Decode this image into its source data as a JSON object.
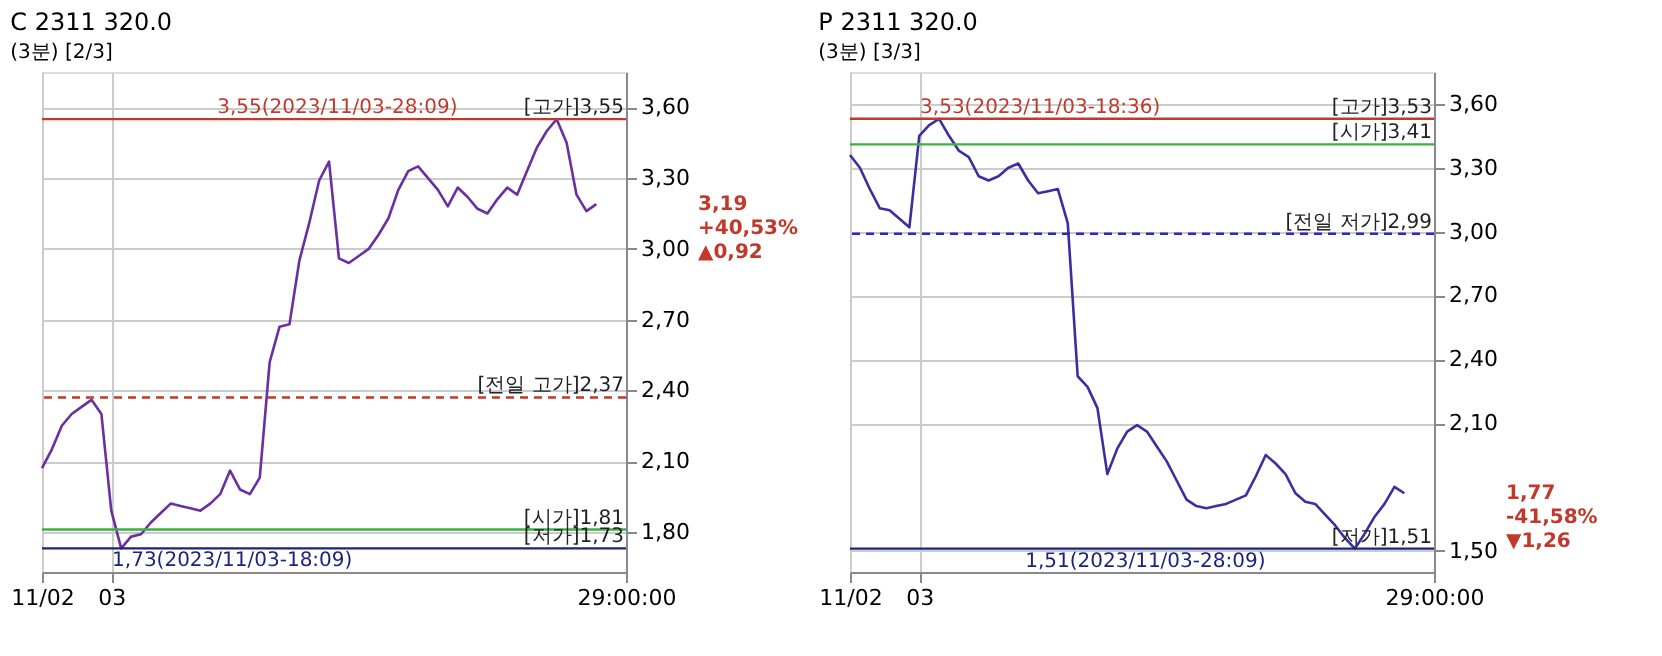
{
  "chart_data": [
    {
      "type": "line",
      "title": "C 2311 320.0",
      "subtitle": "(3분) [2/3]",
      "grid": true,
      "line_style": "solid",
      "marker": "none",
      "categories": [
        "11/02",
        null,
        null,
        null,
        null,
        null,
        null,
        "03",
        null,
        null,
        null,
        null,
        null,
        null,
        null,
        null,
        null,
        null,
        null,
        null,
        null,
        null,
        null,
        null,
        null,
        null,
        null,
        null,
        null,
        null,
        null,
        null,
        null,
        null,
        null,
        null,
        null,
        null,
        null,
        null,
        null,
        null,
        null,
        null,
        null,
        null,
        null,
        null,
        null,
        null,
        null,
        null,
        null,
        null,
        null,
        null,
        null,
        null,
        null,
        "29:00:00"
      ],
      "ylim": [
        1.63,
        3.75
      ],
      "yticks": [
        {
          "value": 1.8,
          "label": "1,80"
        },
        {
          "value": 2.1,
          "label": "2,10"
        },
        {
          "value": 2.4,
          "label": "2,40"
        },
        {
          "value": 2.7,
          "label": "2,70"
        },
        {
          "value": 3.0,
          "label": "3,00"
        },
        {
          "value": 3.3,
          "label": "3,30"
        },
        {
          "value": 3.6,
          "label": "3,60"
        }
      ],
      "series": [
        {
          "color": "#6a2fa0",
          "values": [
            2.07,
            2.15,
            2.25,
            2.3,
            2.33,
            2.36,
            2.3,
            1.89,
            1.73,
            1.78,
            1.79,
            1.84,
            1.88,
            1.92,
            1.91,
            1.9,
            1.89,
            1.92,
            1.96,
            2.06,
            1.98,
            1.96,
            2.03,
            2.52,
            2.67,
            2.68,
            2.95,
            3.11,
            3.29,
            3.37,
            2.96,
            2.94,
            2.97,
            3.0,
            3.06,
            3.13,
            3.25,
            3.33,
            3.35,
            3.3,
            3.25,
            3.18,
            3.26,
            3.22,
            3.17,
            3.15,
            3.21,
            3.26,
            3.23,
            3.33,
            3.43,
            3.5,
            3.55,
            3.45,
            3.23,
            3.16,
            3.19,
            null,
            null,
            null
          ]
        }
      ],
      "ref_lines": [
        {
          "axis": "y",
          "value": 3.55,
          "label": "[고가]3,55",
          "color": "#c0392b",
          "line_style": "solid"
        },
        {
          "axis": "y",
          "value": 2.37,
          "label": "[전일 고가]2,37",
          "color": "#c0392b",
          "line_style": "dashed"
        },
        {
          "axis": "y",
          "value": 1.81,
          "label": "[시가]1,81",
          "color": "#3cb043",
          "line_style": "solid"
        },
        {
          "axis": "y",
          "value": 1.73,
          "label": "[저가]1,73",
          "color": "#1a237e",
          "line_style": "solid"
        }
      ],
      "annotations": [
        {
          "text": "3,55(2023/11/03-28:09)",
          "y": 3.55
        },
        {
          "text": "1,73(2023/11/03-18:09)",
          "y": 1.73
        },
        "3,19\n+40,53%\n▲0,92"
      ]
    },
    {
      "type": "line",
      "title": "P 2311 320.0",
      "subtitle": "(3분) [3/3]",
      "grid": true,
      "line_style": "solid",
      "marker": "none",
      "categories": [
        "11/02",
        null,
        null,
        null,
        null,
        null,
        null,
        "03",
        null,
        null,
        null,
        null,
        null,
        null,
        null,
        null,
        null,
        null,
        null,
        null,
        null,
        null,
        null,
        null,
        null,
        null,
        null,
        null,
        null,
        null,
        null,
        null,
        null,
        null,
        null,
        null,
        null,
        null,
        null,
        null,
        null,
        null,
        null,
        null,
        null,
        null,
        null,
        null,
        null,
        null,
        null,
        null,
        null,
        null,
        null,
        null,
        null,
        null,
        null,
        "29:00:00"
      ],
      "ylim": [
        1.4,
        3.75
      ],
      "yticks": [
        {
          "value": 1.5,
          "label": "1,50"
        },
        {
          "value": 2.1,
          "label": "2,10"
        },
        {
          "value": 2.4,
          "label": "2,40"
        },
        {
          "value": 2.7,
          "label": "2,70"
        },
        {
          "value": 3.0,
          "label": "3,00"
        },
        {
          "value": 3.3,
          "label": "3,30"
        },
        {
          "value": 3.6,
          "label": "3,60"
        }
      ],
      "series": [
        {
          "color": "#3a2fa0",
          "values": [
            3.36,
            3.3,
            3.2,
            3.11,
            3.1,
            3.06,
            3.02,
            3.45,
            3.5,
            3.53,
            3.45,
            3.38,
            3.35,
            3.26,
            3.24,
            3.26,
            3.3,
            3.32,
            3.24,
            3.18,
            3.19,
            3.2,
            3.04,
            2.32,
            2.27,
            2.17,
            1.86,
            1.98,
            2.06,
            2.09,
            2.06,
            1.99,
            1.92,
            1.83,
            1.74,
            1.71,
            1.7,
            1.71,
            1.72,
            1.74,
            1.76,
            1.85,
            1.95,
            1.91,
            1.86,
            1.77,
            1.73,
            1.72,
            1.67,
            1.62,
            1.56,
            1.51,
            1.58,
            1.66,
            1.72,
            1.8,
            1.77,
            null,
            null,
            null
          ]
        }
      ],
      "ref_lines": [
        {
          "axis": "y",
          "value": 3.53,
          "label": "[고가]3,53",
          "color": "#c0392b",
          "line_style": "solid"
        },
        {
          "axis": "y",
          "value": 3.41,
          "label": "[시가]3,41",
          "color": "#3cb043",
          "line_style": "solid"
        },
        {
          "axis": "y",
          "value": 2.99,
          "label": "[전일 저가]2,99",
          "color": "#2a2ac0",
          "line_style": "dashed"
        },
        {
          "axis": "y",
          "value": 1.51,
          "label": "[저가]1,51",
          "color": "#1a237e",
          "line_style": "solid"
        }
      ],
      "annotations": [
        {
          "text": "3,53(2023/11/03-18:36)",
          "y": 3.53
        },
        {
          "text": "1,51(2023/11/03-28:09)",
          "y": 1.51
        },
        "1,77\n-41,58%\n▼1,26"
      ]
    }
  ]
}
